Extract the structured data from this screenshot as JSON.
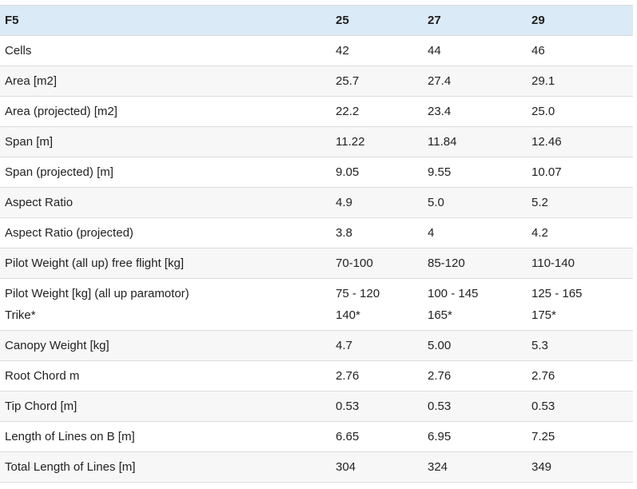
{
  "table": {
    "headers": [
      "F5",
      "25",
      "27",
      "29"
    ],
    "rows": [
      {
        "label": [
          "Cells"
        ],
        "values": [
          [
            "42"
          ],
          [
            "44"
          ],
          [
            "46"
          ]
        ]
      },
      {
        "label": [
          "Area [m2]"
        ],
        "values": [
          [
            "25.7"
          ],
          [
            "27.4"
          ],
          [
            "29.1"
          ]
        ]
      },
      {
        "label": [
          "Area (projected) [m2]"
        ],
        "values": [
          [
            "22.2"
          ],
          [
            "23.4"
          ],
          [
            "25.0"
          ]
        ]
      },
      {
        "label": [
          "Span [m]"
        ],
        "values": [
          [
            "11.22"
          ],
          [
            "11.84"
          ],
          [
            "12.46"
          ]
        ]
      },
      {
        "label": [
          "Span (projected) [m]"
        ],
        "values": [
          [
            "9.05"
          ],
          [
            "9.55"
          ],
          [
            "10.07"
          ]
        ]
      },
      {
        "label": [
          "Aspect Ratio"
        ],
        "values": [
          [
            "4.9"
          ],
          [
            "5.0"
          ],
          [
            "5.2"
          ]
        ]
      },
      {
        "label": [
          "Aspect Ratio (projected)"
        ],
        "values": [
          [
            "3.8"
          ],
          [
            "4"
          ],
          [
            "4.2"
          ]
        ]
      },
      {
        "label": [
          "Pilot Weight (all up) free flight [kg]"
        ],
        "values": [
          [
            "70-100"
          ],
          [
            "85-120"
          ],
          [
            "110-140"
          ]
        ]
      },
      {
        "label": [
          "Pilot Weight [kg] (all up paramotor)",
          "Trike*"
        ],
        "values": [
          [
            "75 - 120",
            "140*"
          ],
          [
            "100 - 145",
            "165*"
          ],
          [
            "125 - 165",
            "175*"
          ]
        ]
      },
      {
        "label": [
          "Canopy Weight [kg]"
        ],
        "values": [
          [
            "4.7"
          ],
          [
            "5.00"
          ],
          [
            "5.3"
          ]
        ]
      },
      {
        "label": [
          "Root Chord m"
        ],
        "values": [
          [
            "2.76"
          ],
          [
            "2.76"
          ],
          [
            "2.76"
          ]
        ]
      },
      {
        "label": [
          "Tip Chord [m]"
        ],
        "values": [
          [
            "0.53"
          ],
          [
            "0.53"
          ],
          [
            "0.53"
          ]
        ]
      },
      {
        "label": [
          "Length of Lines on B [m]"
        ],
        "values": [
          [
            "6.65"
          ],
          [
            "6.95"
          ],
          [
            "7.25"
          ]
        ]
      },
      {
        "label": [
          "Total Length of Lines [m]"
        ],
        "values": [
          [
            "304"
          ],
          [
            "324"
          ],
          [
            "349"
          ]
        ]
      }
    ]
  }
}
